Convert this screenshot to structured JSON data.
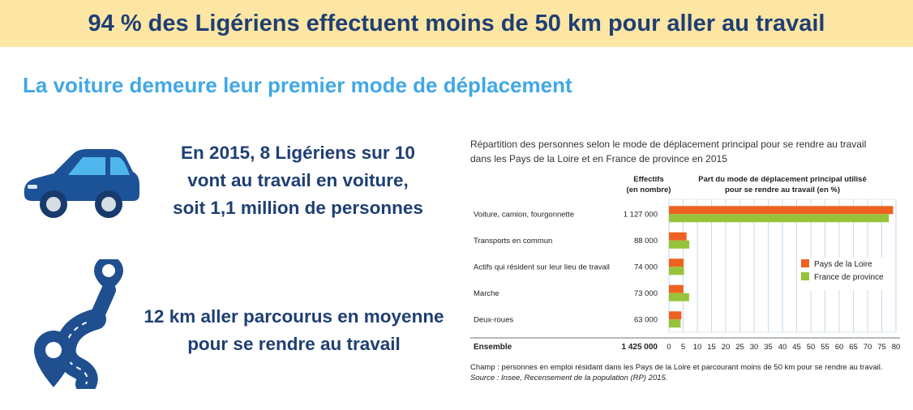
{
  "banner": {
    "title": "94 % des Ligériens effectuent moins de 50 km pour aller au travail"
  },
  "subtitle": "La voiture demeure leur premier mode de déplacement",
  "stat1": {
    "line1": "En 2015, 8 Ligériens sur 10",
    "line2": "vont au travail en voiture,",
    "line3": "soit 1,1 million de personnes"
  },
  "stat2": {
    "line1": "12 km aller parcourus en moyenne",
    "line2": "pour se rendre au travail"
  },
  "icons": {
    "car": "car-icon",
    "road": "winding-road-pin-icon"
  },
  "colors": {
    "pays_de_la_loire": "#ee6221",
    "france_de_province": "#97c33a",
    "navy": "#1f3f73",
    "accent": "#41a8e6"
  },
  "chart_data": {
    "type": "bar",
    "orientation": "horizontal",
    "title_line1": "Répartition des personnes selon le mode de déplacement principal pour se rendre au travail",
    "title_line2": "dans les Pays de la Loire et en France de province en 2015",
    "effectifs_header_line1": "Effectifs",
    "effectifs_header_line2": "(en nombre)",
    "bars_header_line1": "Part du mode de déplacement principal utilisé",
    "bars_header_line2": "pour se rendre au travail (en %)",
    "categories": [
      "Voiture, camion, fourgonnette",
      "Transports en commun",
      "Actifs qui résident sur leur lieu de travail",
      "Marche",
      "Deux-roues"
    ],
    "effectifs": [
      "1 127 000",
      "88 000",
      "74 000",
      "73 000",
      "63 000"
    ],
    "series": [
      {
        "name": "Pays de la Loire",
        "color": "#ee6221",
        "values": [
          79,
          6.2,
          5.2,
          5.1,
          4.4
        ]
      },
      {
        "name": "France de province",
        "color": "#97c33a",
        "values": [
          77.5,
          7.2,
          5.3,
          7.1,
          4.1
        ]
      }
    ],
    "total_label": "Ensemble",
    "total_value": "1 425 000",
    "xlim": [
      0,
      80
    ],
    "xticks": [
      0,
      5,
      10,
      15,
      20,
      25,
      30,
      35,
      40,
      45,
      50,
      55,
      60,
      65,
      70,
      75,
      80
    ],
    "grid": true,
    "legend_position": "right",
    "note_line1": "Champ : personnes en emploi résidant dans les Pays de la Loire et parcourant moins de 50 km pour se rendre au travail.",
    "note_line2": "Source : Insee, Recensement de la population (RP) 2015."
  }
}
